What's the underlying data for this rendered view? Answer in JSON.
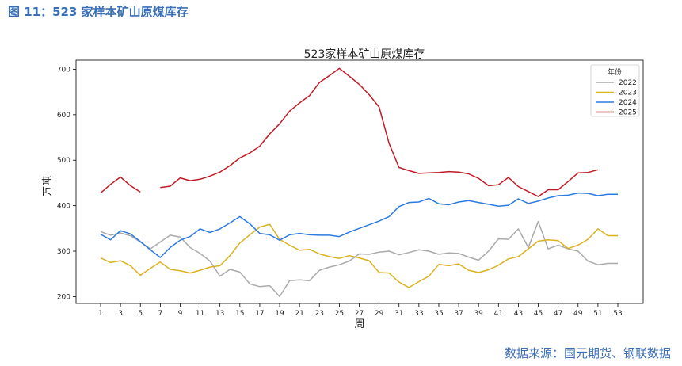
{
  "figure": {
    "caption": "图 11：523 家样本矿山原煤库存",
    "source": "数据来源：国元期货、钢联数据"
  },
  "chart_data": {
    "type": "line",
    "title": "523家样本矿山原煤库存",
    "xlabel": "周",
    "ylabel": "万吨",
    "xlim": [
      1,
      53
    ],
    "ylim": [
      185,
      720
    ],
    "xticks": [
      1,
      3,
      5,
      7,
      9,
      11,
      13,
      15,
      17,
      19,
      21,
      23,
      25,
      27,
      29,
      31,
      33,
      35,
      37,
      39,
      41,
      43,
      45,
      47,
      49,
      51,
      53
    ],
    "yticks": [
      200,
      300,
      400,
      500,
      600,
      700
    ],
    "grid": false,
    "legend": {
      "title": "年份",
      "placement": "top-right"
    },
    "series": [
      {
        "name": "2022",
        "color": "#aaaaaa",
        "x": [
          1,
          2,
          3,
          4,
          5,
          6,
          7,
          8,
          9,
          10,
          11,
          12,
          13,
          14,
          15,
          16,
          17,
          18,
          19,
          20,
          21,
          22,
          23,
          24,
          25,
          26,
          27,
          28,
          29,
          30,
          31,
          32,
          33,
          34,
          35,
          36,
          37,
          38,
          39,
          40,
          41,
          42,
          43,
          44,
          45,
          46,
          47,
          48,
          49,
          50,
          51,
          52,
          53
        ],
        "y": [
          343,
          335,
          340,
          334,
          320,
          305,
          320,
          335,
          331,
          308,
          295,
          278,
          245,
          260,
          254,
          228,
          222,
          224,
          200,
          235,
          237,
          235,
          258,
          265,
          270,
          278,
          294,
          293,
          298,
          300,
          292,
          297,
          303,
          300,
          293,
          296,
          295,
          287,
          280,
          300,
          327,
          326,
          349,
          308,
          365,
          305,
          313,
          305,
          300,
          278,
          270,
          273,
          273
        ]
      },
      {
        "name": "2023",
        "color": "#dbb11e",
        "x": [
          1,
          2,
          3,
          4,
          5,
          6,
          7,
          8,
          9,
          10,
          11,
          12,
          13,
          14,
          15,
          16,
          17,
          18,
          19,
          20,
          21,
          22,
          23,
          24,
          25,
          26,
          27,
          28,
          29,
          30,
          31,
          32,
          33,
          34,
          35,
          36,
          37,
          38,
          39,
          40,
          41,
          42,
          43,
          44,
          45,
          46,
          47,
          48,
          49,
          50,
          51,
          52,
          53
        ],
        "y": [
          285,
          275,
          279,
          268,
          247,
          262,
          276,
          260,
          257,
          252,
          258,
          265,
          268,
          290,
          318,
          336,
          353,
          359,
          326,
          313,
          302,
          304,
          294,
          288,
          284,
          290,
          285,
          279,
          253,
          252,
          232,
          220,
          233,
          245,
          271,
          268,
          272,
          258,
          253,
          259,
          269,
          283,
          288,
          305,
          322,
          325,
          323,
          306,
          313,
          326,
          349,
          334,
          334
        ]
      },
      {
        "name": "2024",
        "color": "#2b7be0",
        "x": [
          1,
          2,
          3,
          4,
          5,
          6,
          7,
          8,
          9,
          10,
          11,
          12,
          13,
          14,
          15,
          16,
          17,
          18,
          19,
          20,
          21,
          22,
          23,
          24,
          25,
          26,
          27,
          28,
          29,
          30,
          31,
          32,
          33,
          34,
          35,
          36,
          37,
          38,
          39,
          40,
          41,
          42,
          43,
          44,
          45,
          46,
          47,
          48,
          49,
          50,
          51,
          52,
          53
        ],
        "y": [
          337,
          325,
          345,
          338,
          321,
          303,
          286,
          308,
          324,
          332,
          349,
          341,
          349,
          362,
          376,
          360,
          339,
          336,
          324,
          336,
          339,
          336,
          335,
          335,
          332,
          342,
          350,
          358,
          366,
          376,
          398,
          407,
          408,
          416,
          404,
          402,
          408,
          411,
          407,
          403,
          399,
          401,
          415,
          405,
          410,
          417,
          422,
          423,
          428,
          427,
          422,
          425,
          425
        ]
      },
      {
        "name": "2025",
        "color": "#c01b25",
        "segments": [
          {
            "x": [
              1,
              2,
              3,
              4,
              5
            ],
            "y": [
              428,
              447,
              463,
              444,
              430
            ]
          },
          {
            "x": [
              7,
              8,
              9,
              10,
              11,
              12,
              13,
              14,
              15,
              16,
              17,
              18,
              19,
              20,
              21,
              22,
              23,
              24,
              25,
              26,
              27,
              28,
              29,
              30,
              31,
              32,
              33,
              34,
              35,
              36,
              37,
              38,
              39,
              40,
              41,
              42,
              43,
              44,
              45,
              46,
              47,
              48,
              49,
              50,
              51
            ],
            "y": [
              440,
              443,
              461,
              455,
              458,
              465,
              474,
              488,
              505,
              516,
              531,
              558,
              580,
              608,
              626,
              642,
              671,
              686,
              702,
              685,
              667,
              644,
              617,
              537,
              484,
              477,
              471,
              472,
              473,
              475,
              474,
              470,
              460,
              444,
              446,
              462,
              442,
              431,
              420,
              435,
              435,
              453,
              472,
              473,
              479
            ]
          }
        ]
      }
    ]
  }
}
